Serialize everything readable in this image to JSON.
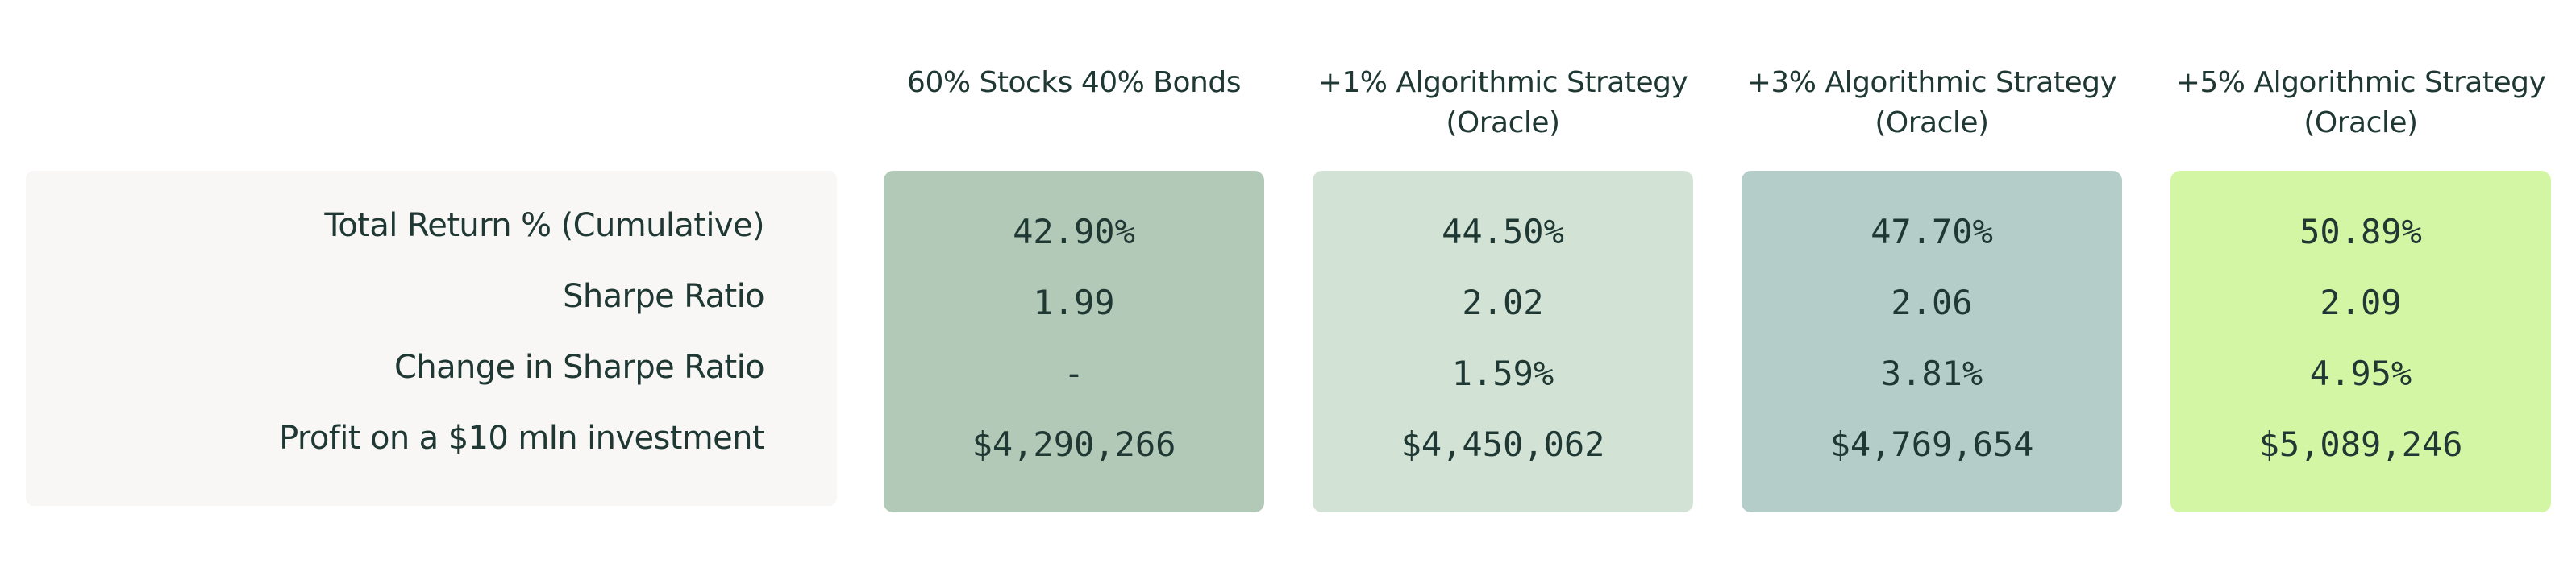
{
  "chart_data": {
    "type": "table",
    "row_labels": [
      "Total Return % (Cumulative)",
      "Sharpe Ratio",
      "Change in Sharpe Ratio",
      "Profit on a $10 mln investment"
    ],
    "columns": [
      {
        "header_lines": [
          "60% Stocks 40% Bonds"
        ],
        "color": "#b2c9b8",
        "values": [
          "42.90%",
          "1.99",
          "-",
          "$4,290,266"
        ]
      },
      {
        "header_lines": [
          "+1% Algorithmic Strategy",
          "(Oracle)"
        ],
        "color": "#d2e3d5",
        "values": [
          "44.50%",
          "2.02",
          "1.59%",
          "$4,450,062"
        ]
      },
      {
        "header_lines": [
          "+3% Algorithmic Strategy",
          "(Oracle)"
        ],
        "color": "#b5cdc9",
        "values": [
          "47.70%",
          "2.06",
          "3.81%",
          "$4,769,654"
        ]
      },
      {
        "header_lines": [
          "+5% Algorithmic Strategy",
          "(Oracle)"
        ],
        "color": "#d3f6a4",
        "values": [
          "50.89%",
          "2.09",
          "4.95%",
          "$5,089,246"
        ]
      }
    ]
  }
}
